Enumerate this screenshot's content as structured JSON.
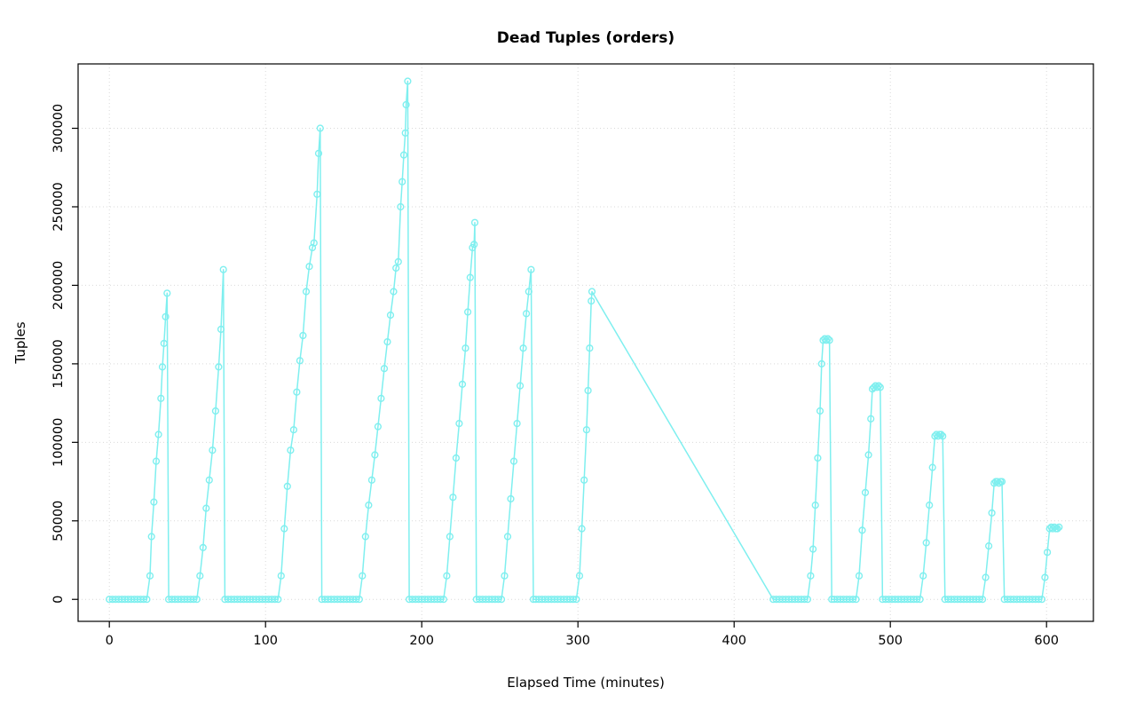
{
  "window": {
    "title": "Dead Tuples (orders)",
    "background": "#ffffff"
  },
  "chart_data": {
    "type": "line",
    "title": "Dead Tuples (orders)",
    "xlabel": "Elapsed Time (minutes)",
    "ylabel": "Tuples",
    "xlim": [
      -20,
      630
    ],
    "ylim": [
      -14000,
      341000
    ],
    "x_ticks": [
      0,
      100,
      200,
      300,
      400,
      500,
      600
    ],
    "y_ticks": [
      0,
      50000,
      100000,
      150000,
      200000,
      250000,
      300000
    ],
    "grid": "dotted",
    "grid_color": "#d9d9d9",
    "legend": "none",
    "marker": "circle-open",
    "series": [
      {
        "name": "dead_tuples",
        "color": "#7fefef",
        "points": [
          [
            0,
            0
          ],
          [
            2,
            0
          ],
          [
            4,
            0
          ],
          [
            6,
            0
          ],
          [
            8,
            0
          ],
          [
            10,
            0
          ],
          [
            12,
            0
          ],
          [
            14,
            0
          ],
          [
            16,
            0
          ],
          [
            18,
            0
          ],
          [
            20,
            0
          ],
          [
            22,
            0
          ],
          [
            24,
            0
          ],
          [
            26,
            15000
          ],
          [
            27,
            40000
          ],
          [
            28.5,
            62000
          ],
          [
            30,
            88000
          ],
          [
            31.5,
            105000
          ],
          [
            33,
            128000
          ],
          [
            34,
            148000
          ],
          [
            35,
            163000
          ],
          [
            36,
            180000
          ],
          [
            37,
            195000
          ],
          [
            38,
            0
          ],
          [
            40,
            0
          ],
          [
            42,
            0
          ],
          [
            44,
            0
          ],
          [
            46,
            0
          ],
          [
            48,
            0
          ],
          [
            50,
            0
          ],
          [
            52,
            0
          ],
          [
            54,
            0
          ],
          [
            56,
            0
          ],
          [
            58,
            15000
          ],
          [
            60,
            33000
          ],
          [
            62,
            58000
          ],
          [
            64,
            76000
          ],
          [
            66,
            95000
          ],
          [
            68,
            120000
          ],
          [
            70,
            148000
          ],
          [
            71.5,
            172000
          ],
          [
            73,
            210000
          ],
          [
            74,
            0
          ],
          [
            76,
            0
          ],
          [
            78,
            0
          ],
          [
            80,
            0
          ],
          [
            82,
            0
          ],
          [
            84,
            0
          ],
          [
            86,
            0
          ],
          [
            88,
            0
          ],
          [
            90,
            0
          ],
          [
            92,
            0
          ],
          [
            94,
            0
          ],
          [
            96,
            0
          ],
          [
            98,
            0
          ],
          [
            100,
            0
          ],
          [
            102,
            0
          ],
          [
            104,
            0
          ],
          [
            106,
            0
          ],
          [
            108,
            0
          ],
          [
            110,
            15000
          ],
          [
            112,
            45000
          ],
          [
            114,
            72000
          ],
          [
            116,
            95000
          ],
          [
            118,
            108000
          ],
          [
            120,
            132000
          ],
          [
            122,
            152000
          ],
          [
            124,
            168000
          ],
          [
            126,
            196000
          ],
          [
            128,
            212000
          ],
          [
            130,
            224000
          ],
          [
            131,
            227000
          ],
          [
            133,
            258000
          ],
          [
            134,
            284000
          ],
          [
            135,
            300000
          ],
          [
            136,
            0
          ],
          [
            138,
            0
          ],
          [
            140,
            0
          ],
          [
            142,
            0
          ],
          [
            144,
            0
          ],
          [
            146,
            0
          ],
          [
            148,
            0
          ],
          [
            150,
            0
          ],
          [
            152,
            0
          ],
          [
            154,
            0
          ],
          [
            156,
            0
          ],
          [
            158,
            0
          ],
          [
            160,
            0
          ],
          [
            162,
            15000
          ],
          [
            164,
            40000
          ],
          [
            166,
            60000
          ],
          [
            168,
            76000
          ],
          [
            170,
            92000
          ],
          [
            172,
            110000
          ],
          [
            174,
            128000
          ],
          [
            176,
            147000
          ],
          [
            178,
            164000
          ],
          [
            180,
            181000
          ],
          [
            182,
            196000
          ],
          [
            183.5,
            211000
          ],
          [
            185,
            215000
          ],
          [
            186.5,
            250000
          ],
          [
            187.5,
            266000
          ],
          [
            188.5,
            283000
          ],
          [
            189.5,
            297000
          ],
          [
            190,
            315000
          ],
          [
            191,
            330000
          ],
          [
            192,
            0
          ],
          [
            194,
            0
          ],
          [
            196,
            0
          ],
          [
            198,
            0
          ],
          [
            200,
            0
          ],
          [
            202,
            0
          ],
          [
            204,
            0
          ],
          [
            206,
            0
          ],
          [
            208,
            0
          ],
          [
            210,
            0
          ],
          [
            212,
            0
          ],
          [
            214,
            0
          ],
          [
            216,
            15000
          ],
          [
            218,
            40000
          ],
          [
            220,
            65000
          ],
          [
            222,
            90000
          ],
          [
            224,
            112000
          ],
          [
            226,
            137000
          ],
          [
            228,
            160000
          ],
          [
            229.5,
            183000
          ],
          [
            231,
            205000
          ],
          [
            232.5,
            224000
          ],
          [
            233.5,
            226000
          ],
          [
            234,
            240000
          ],
          [
            235,
            0
          ],
          [
            237,
            0
          ],
          [
            239,
            0
          ],
          [
            241,
            0
          ],
          [
            243,
            0
          ],
          [
            245,
            0
          ],
          [
            247,
            0
          ],
          [
            249,
            0
          ],
          [
            251,
            0
          ],
          [
            253,
            15000
          ],
          [
            255,
            40000
          ],
          [
            257,
            64000
          ],
          [
            259,
            88000
          ],
          [
            261,
            112000
          ],
          [
            263,
            136000
          ],
          [
            265,
            160000
          ],
          [
            267,
            182000
          ],
          [
            268.5,
            196000
          ],
          [
            270,
            210000
          ],
          [
            271.5,
            0
          ],
          [
            273,
            0
          ],
          [
            275,
            0
          ],
          [
            277,
            0
          ],
          [
            279,
            0
          ],
          [
            281,
            0
          ],
          [
            283,
            0
          ],
          [
            285,
            0
          ],
          [
            287,
            0
          ],
          [
            289,
            0
          ],
          [
            291,
            0
          ],
          [
            293,
            0
          ],
          [
            295,
            0
          ],
          [
            297,
            0
          ],
          [
            299,
            0
          ],
          [
            301,
            15000
          ],
          [
            302.5,
            45000
          ],
          [
            304,
            76000
          ],
          [
            305.5,
            108000
          ],
          [
            306.5,
            133000
          ],
          [
            307.5,
            160000
          ],
          [
            308.5,
            190000
          ],
          [
            309,
            196000
          ],
          [
            425,
            0
          ],
          [
            427,
            0
          ],
          [
            429,
            0
          ],
          [
            431,
            0
          ],
          [
            433,
            0
          ],
          [
            435,
            0
          ],
          [
            437,
            0
          ],
          [
            439,
            0
          ],
          [
            441,
            0
          ],
          [
            443,
            0
          ],
          [
            445,
            0
          ],
          [
            447,
            0
          ],
          [
            449,
            15000
          ],
          [
            450.5,
            32000
          ],
          [
            452,
            60000
          ],
          [
            453.5,
            90000
          ],
          [
            455,
            120000
          ],
          [
            456,
            150000
          ],
          [
            457,
            165000
          ],
          [
            458,
            166000
          ],
          [
            459,
            165000
          ],
          [
            460,
            166000
          ],
          [
            461,
            165000
          ],
          [
            462.5,
            0
          ],
          [
            464,
            0
          ],
          [
            466,
            0
          ],
          [
            468,
            0
          ],
          [
            470,
            0
          ],
          [
            472,
            0
          ],
          [
            474,
            0
          ],
          [
            476,
            0
          ],
          [
            478,
            0
          ],
          [
            480,
            15000
          ],
          [
            482,
            44000
          ],
          [
            484,
            68000
          ],
          [
            486,
            92000
          ],
          [
            487.5,
            115000
          ],
          [
            488.5,
            134000
          ],
          [
            489.5,
            135000
          ],
          [
            490.5,
            136000
          ],
          [
            491.5,
            135000
          ],
          [
            492.5,
            136000
          ],
          [
            493.5,
            135000
          ],
          [
            495,
            0
          ],
          [
            497,
            0
          ],
          [
            499,
            0
          ],
          [
            501,
            0
          ],
          [
            503,
            0
          ],
          [
            505,
            0
          ],
          [
            507,
            0
          ],
          [
            509,
            0
          ],
          [
            511,
            0
          ],
          [
            513,
            0
          ],
          [
            515,
            0
          ],
          [
            517,
            0
          ],
          [
            519,
            0
          ],
          [
            521,
            15000
          ],
          [
            523,
            36000
          ],
          [
            525,
            60000
          ],
          [
            527,
            84000
          ],
          [
            528.5,
            104000
          ],
          [
            529.5,
            105000
          ],
          [
            530.5,
            104000
          ],
          [
            531.5,
            105000
          ],
          [
            532.5,
            105000
          ],
          [
            533.5,
            104000
          ],
          [
            535,
            0
          ],
          [
            537,
            0
          ],
          [
            539,
            0
          ],
          [
            541,
            0
          ],
          [
            543,
            0
          ],
          [
            545,
            0
          ],
          [
            547,
            0
          ],
          [
            549,
            0
          ],
          [
            551,
            0
          ],
          [
            553,
            0
          ],
          [
            555,
            0
          ],
          [
            557,
            0
          ],
          [
            559,
            0
          ],
          [
            561,
            14000
          ],
          [
            563,
            34000
          ],
          [
            565,
            55000
          ],
          [
            566.5,
            74000
          ],
          [
            567.5,
            75000
          ],
          [
            568.5,
            75000
          ],
          [
            569.5,
            74000
          ],
          [
            570.5,
            75000
          ],
          [
            571.5,
            75000
          ],
          [
            573,
            0
          ],
          [
            575,
            0
          ],
          [
            577,
            0
          ],
          [
            579,
            0
          ],
          [
            581,
            0
          ],
          [
            583,
            0
          ],
          [
            585,
            0
          ],
          [
            587,
            0
          ],
          [
            589,
            0
          ],
          [
            591,
            0
          ],
          [
            593,
            0
          ],
          [
            595,
            0
          ],
          [
            597,
            0
          ],
          [
            599,
            14000
          ],
          [
            600.5,
            30000
          ],
          [
            602,
            45000
          ],
          [
            603,
            46000
          ],
          [
            604,
            45000
          ],
          [
            605,
            46000
          ],
          [
            606,
            45000
          ],
          [
            607,
            45000
          ],
          [
            608,
            46000
          ]
        ]
      }
    ]
  }
}
